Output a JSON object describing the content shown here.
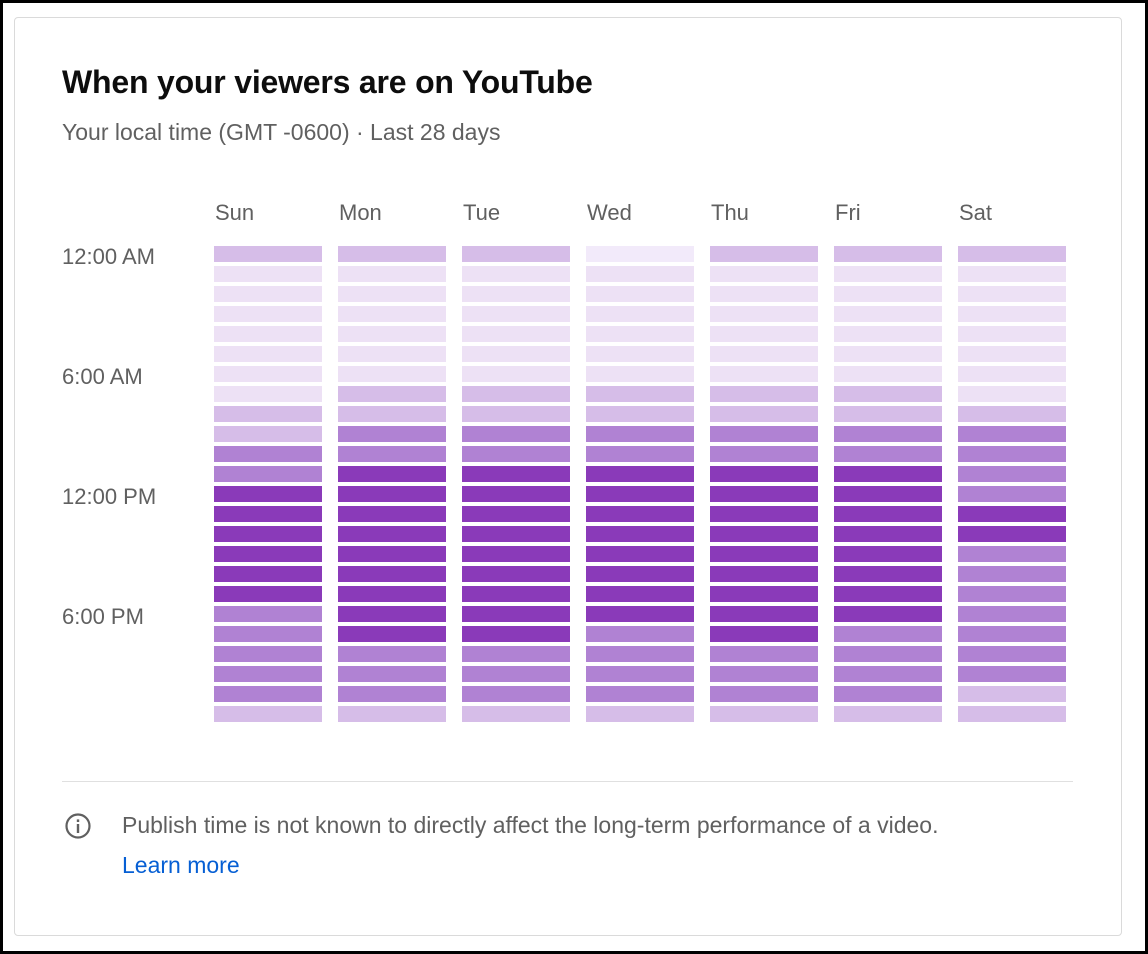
{
  "card": {
    "title": "When your viewers are on YouTube",
    "subtitle": "Your local time (GMT -0600) · Last 28 days"
  },
  "heatmap": {
    "days": [
      "Sun",
      "Mon",
      "Tue",
      "Wed",
      "Thu",
      "Fri",
      "Sat"
    ],
    "time_labels": [
      "12:00 AM",
      "6:00 AM",
      "12:00 PM",
      "6:00 PM"
    ],
    "colors": {
      "level_0": "#f2eafa",
      "level_1": "#ede1f5",
      "level_2": "#d6bde8",
      "level_3": "#b082d3",
      "level_4": "#8a3ab9"
    },
    "levels": [
      [
        2,
        1,
        1,
        1,
        1,
        1,
        1,
        1,
        2,
        2,
        3,
        3,
        4,
        4,
        4,
        4,
        4,
        4,
        3,
        3,
        3,
        3,
        3,
        2
      ],
      [
        2,
        1,
        1,
        1,
        1,
        1,
        1,
        2,
        2,
        3,
        3,
        4,
        4,
        4,
        4,
        4,
        4,
        4,
        4,
        4,
        3,
        3,
        3,
        2
      ],
      [
        2,
        1,
        1,
        1,
        1,
        1,
        1,
        2,
        2,
        3,
        3,
        4,
        4,
        4,
        4,
        4,
        4,
        4,
        4,
        4,
        3,
        3,
        3,
        2
      ],
      [
        0,
        1,
        1,
        1,
        1,
        1,
        1,
        2,
        2,
        3,
        3,
        4,
        4,
        4,
        4,
        4,
        4,
        4,
        4,
        3,
        3,
        3,
        3,
        2
      ],
      [
        2,
        1,
        1,
        1,
        1,
        1,
        1,
        2,
        2,
        3,
        3,
        4,
        4,
        4,
        4,
        4,
        4,
        4,
        4,
        4,
        3,
        3,
        3,
        2
      ],
      [
        2,
        1,
        1,
        1,
        1,
        1,
        1,
        2,
        2,
        3,
        3,
        4,
        4,
        4,
        4,
        4,
        4,
        4,
        4,
        3,
        3,
        3,
        3,
        2
      ],
      [
        2,
        1,
        1,
        1,
        1,
        1,
        1,
        1,
        2,
        3,
        3,
        3,
        3,
        4,
        4,
        3,
        3,
        3,
        3,
        3,
        3,
        3,
        2,
        2
      ]
    ]
  },
  "footer": {
    "icon": "info-icon",
    "note": "Publish time is not known to directly affect the long-term performance of a video.",
    "learn_more": "Learn more"
  }
}
